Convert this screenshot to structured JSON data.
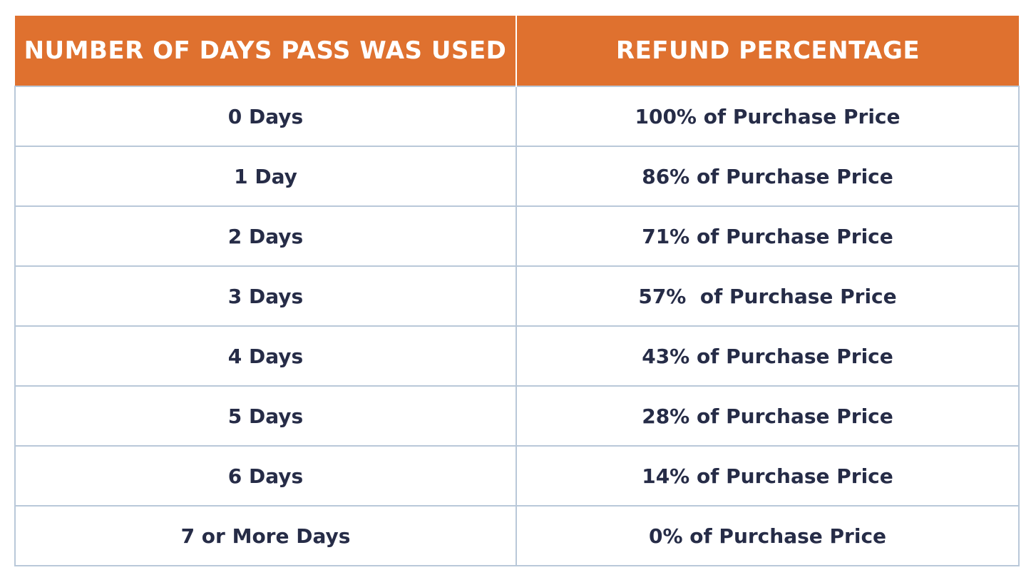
{
  "table": {
    "headers": [
      "NUMBER OF DAYS PASS WAS USED",
      "REFUND PERCENTAGE"
    ],
    "rows": [
      [
        "0 Days",
        "100% of Purchase Price"
      ],
      [
        "1 Day",
        "86% of Purchase Price"
      ],
      [
        "2 Days",
        "71% of Purchase Price"
      ],
      [
        "3 Days",
        "57%  of Purchase Price"
      ],
      [
        "4 Days",
        "43% of Purchase Price"
      ],
      [
        "5 Days",
        "28% of Purchase Price"
      ],
      [
        "6 Days",
        "14% of Purchase Price"
      ],
      [
        "7 or More Days",
        "0% of Purchase Price"
      ]
    ]
  },
  "colors": {
    "header_background": "#df712f",
    "header_text": "#ffffff",
    "cell_text": "#262c47",
    "grid_line": "#b9c8d9"
  }
}
